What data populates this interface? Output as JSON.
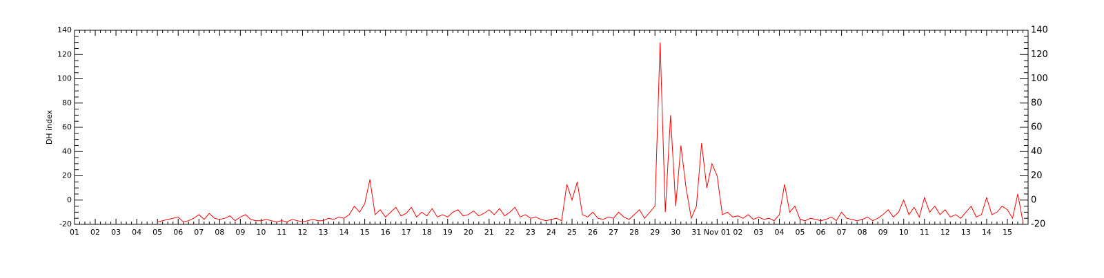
{
  "chart_data": {
    "type": "line",
    "y_label": "DH index",
    "ylim": [
      -20,
      140
    ],
    "yticks": [
      -20,
      0,
      20,
      40,
      60,
      80,
      100,
      120,
      140
    ],
    "categories": [
      "01",
      null,
      null,
      null,
      "02",
      null,
      null,
      null,
      "03",
      null,
      null,
      null,
      "04",
      null,
      null,
      null,
      "05",
      null,
      null,
      null,
      "06",
      null,
      null,
      null,
      "07",
      null,
      null,
      null,
      "08",
      null,
      null,
      null,
      "09",
      null,
      null,
      null,
      "10",
      null,
      null,
      null,
      "11",
      null,
      null,
      null,
      "12",
      null,
      null,
      null,
      "13",
      null,
      null,
      null,
      "14",
      null,
      null,
      null,
      "15",
      null,
      null,
      null,
      "16",
      null,
      null,
      null,
      "17",
      null,
      null,
      null,
      "18",
      null,
      null,
      null,
      "19",
      null,
      null,
      null,
      "20",
      null,
      null,
      null,
      "21",
      null,
      null,
      null,
      "22",
      null,
      null,
      null,
      "23",
      null,
      null,
      null,
      "24",
      null,
      null,
      null,
      "25",
      null,
      null,
      null,
      "26",
      null,
      null,
      null,
      "27",
      null,
      null,
      null,
      "28",
      null,
      null,
      null,
      "29",
      null,
      null,
      null,
      "30",
      null,
      null,
      null,
      "31",
      null,
      null,
      null,
      "Nov 01",
      null,
      null,
      null,
      "02",
      null,
      null,
      null,
      "03",
      null,
      null,
      null,
      "04",
      null,
      null,
      null,
      "05",
      null,
      null,
      null,
      "06",
      null,
      null,
      null,
      "07",
      null,
      null,
      null,
      "08",
      null,
      null,
      null,
      "09",
      null,
      null,
      null,
      "10",
      null,
      null,
      null,
      "11",
      null,
      null,
      null,
      "12",
      null,
      null,
      null,
      "13",
      null,
      null,
      null,
      "14",
      null,
      null,
      null,
      "15",
      null,
      null,
      null
    ],
    "series": [
      {
        "color": "#ff0000",
        "values": [
          null,
          null,
          null,
          null,
          null,
          null,
          null,
          null,
          null,
          null,
          null,
          null,
          null,
          null,
          null,
          null,
          -18,
          -17,
          -16,
          -15,
          -14,
          -18,
          -17,
          -15,
          -12,
          -16,
          -11,
          -15,
          -16,
          -15,
          -13,
          -17,
          -14,
          -12,
          -16,
          -17,
          -17,
          -16,
          -17,
          -18,
          -17,
          -18,
          -16,
          -17,
          -18,
          -17,
          -16,
          -17,
          -17,
          -15,
          -16,
          -14,
          -15,
          -12,
          -5,
          -10,
          -3,
          17,
          -12,
          -8,
          -14,
          -10,
          -6,
          -13,
          -11,
          -6,
          -14,
          -10,
          -13,
          -7,
          -14,
          -12,
          -14,
          -10,
          -8,
          -13,
          -12,
          -9,
          -13,
          -11,
          -8,
          -12,
          -7,
          -13,
          -10,
          -6,
          -14,
          -12,
          -15,
          -14,
          -16,
          -17,
          -16,
          -15,
          -17,
          13,
          0,
          15,
          -12,
          -14,
          -10,
          -15,
          -16,
          -14,
          -15,
          -10,
          -14,
          -16,
          -12,
          -8,
          -15,
          -10,
          -5,
          130,
          -10,
          70,
          -5,
          45,
          10,
          -15,
          -5,
          47,
          10,
          30,
          20,
          -12,
          -10,
          -14,
          -13,
          -15,
          -12,
          -16,
          -14,
          -16,
          -15,
          -17,
          -12,
          13,
          -10,
          -5,
          -16,
          -17,
          -15,
          -16,
          -17,
          -16,
          -14,
          -17,
          -10,
          -15,
          -16,
          -17,
          -16,
          -14,
          -17,
          -15,
          -12,
          -8,
          -14,
          -10,
          0,
          -12,
          -6,
          -14,
          2,
          -10,
          -5,
          -12,
          -8,
          -14,
          -12,
          -15,
          -10,
          -5,
          -14,
          -12,
          2,
          -12,
          -10,
          -5,
          -8,
          -15,
          5,
          -18
        ]
      }
    ]
  }
}
